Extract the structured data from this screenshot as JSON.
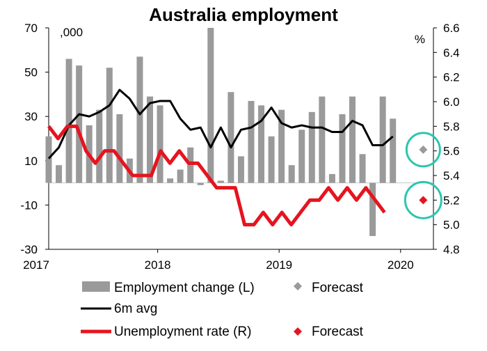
{
  "chart_data": {
    "type": "bar-line-combo",
    "title": "Australia employment",
    "left_axis": {
      "unit_label": ",000",
      "min": -30,
      "max": 70,
      "ticks": [
        -30,
        -10,
        10,
        30,
        50,
        70
      ]
    },
    "right_axis": {
      "unit_label": "%",
      "min": 4.8,
      "max": 6.6,
      "ticks": [
        4.8,
        5.0,
        5.2,
        5.4,
        5.6,
        5.8,
        6.0,
        6.2,
        6.4,
        6.6
      ],
      "tick_labels": [
        "4.8",
        "5.0",
        "5.2",
        "5.4",
        "5.6",
        "5.8",
        "6.0",
        "6.2",
        "6.4",
        "6.6"
      ]
    },
    "x_axis": {
      "labels": [
        "2017",
        "2018",
        "2019",
        "2020"
      ],
      "label_positions": [
        0,
        12,
        24,
        36
      ]
    },
    "employment_change": {
      "name": "Employment change (L)",
      "axis": "left",
      "color": "#9a9a9a",
      "values": [
        21,
        8,
        56,
        53,
        26,
        33,
        52,
        31,
        11,
        57,
        39,
        35,
        2,
        6,
        16,
        -1,
        70,
        1,
        41,
        12,
        37,
        35,
        21,
        33,
        8,
        24,
        32,
        39,
        4,
        31,
        39,
        13,
        -24,
        39,
        29
      ]
    },
    "six_month_avg": {
      "name": "6m avg",
      "axis": "left",
      "color": "#000000",
      "values": [
        11,
        16,
        26,
        31,
        30,
        32,
        35,
        42,
        38,
        31,
        36,
        37,
        37,
        29,
        24,
        25,
        16,
        25,
        16,
        24,
        25,
        28,
        34,
        27,
        25,
        26,
        25,
        25,
        23,
        23,
        28,
        26,
        17,
        17,
        21
      ]
    },
    "unemployment_rate": {
      "name": "Unemployment rate (R)",
      "axis": "right",
      "color": "#e5141f",
      "values": [
        5.8,
        5.7,
        5.8,
        5.8,
        5.6,
        5.5,
        5.6,
        5.6,
        5.5,
        5.4,
        5.4,
        5.4,
        5.6,
        5.5,
        5.6,
        5.5,
        5.5,
        5.4,
        5.3,
        5.3,
        5.3,
        5.0,
        5.0,
        5.1,
        5.0,
        5.1,
        5.0,
        5.1,
        5.2,
        5.2,
        5.3,
        5.2,
        5.3,
        5.2,
        5.3,
        5.2,
        5.1
      ]
    },
    "employment_forecast": {
      "name": "Forecast",
      "value": 15,
      "axis": "left",
      "color": "#9a9a9a"
    },
    "unemployment_forecast": {
      "name": "Forecast",
      "value": 5.2,
      "axis": "right",
      "color": "#e5141f"
    },
    "highlight_color": "#2cc5b0",
    "legend": [
      {
        "label": "Employment change (L)",
        "kind": "bar",
        "color": "#9a9a9a"
      },
      {
        "label": "Forecast",
        "kind": "diamond",
        "color": "#9a9a9a"
      },
      {
        "label": "6m avg",
        "kind": "line",
        "color": "#000000"
      },
      {
        "label": "Unemployment rate (R)",
        "kind": "line",
        "color": "#e5141f"
      },
      {
        "label": "Forecast",
        "kind": "diamond",
        "color": "#e5141f"
      }
    ]
  }
}
